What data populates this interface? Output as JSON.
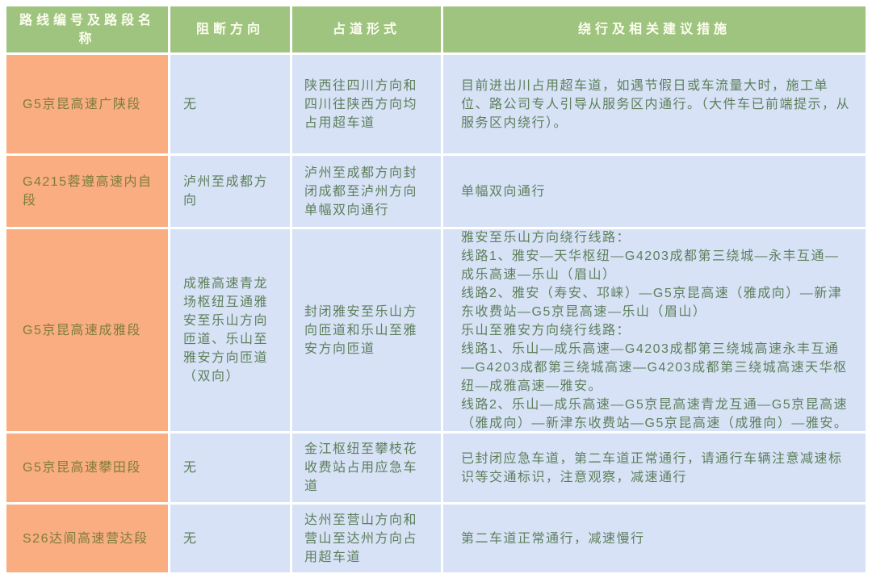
{
  "colors": {
    "header_bg": "#9fc47f",
    "header_text": "#fdfdf0",
    "route_column_bg": "#f9ad80",
    "route_column_text": "#7e7c3c",
    "body_cell_bg": "#d7e2f7",
    "body_cell_text": "#5e7f5a",
    "grid_gap": "#ffffff"
  },
  "table": {
    "headers": {
      "route": "路线编号及路段名称",
      "direction": "阻断方向",
      "occupation": "占道形式",
      "advice": "绕行及相关建议措施"
    },
    "rows": [
      {
        "route": "G5京昆高速广陕段",
        "direction": "无",
        "occupation": "陕西往四川方向和四川往陕西方向均占用超车道",
        "advice": "目前进出川占用超车道，如遇节假日或车流量大时，施工单位、路公司专人引导从服务区内通行。（大件车已前端提示，从服务区内绕行）。"
      },
      {
        "route": "G4215蓉遵高速内自段",
        "direction": "泸州至成都方向",
        "occupation": "泸州至成都方向封闭成都至泸州方向单幅双向通行",
        "advice": "单幅双向通行"
      },
      {
        "route": "G5京昆高速成雅段",
        "direction": "成雅高速青龙场枢纽互通雅安至乐山方向匝道、乐山至雅安方向匝道（双向）",
        "occupation": "封闭雅安至乐山方向匝道和乐山至雅安方向匝道",
        "advice": "雅安至乐山方向绕行线路：\n线路1、雅安—天华枢纽—G4203成都第三绕城—永丰互通—成乐高速—乐山（眉山）\n线路2、雅安（寿安、邛崃）—G5京昆高速（雅成向）—新津东收费站—G5京昆高速—乐山（眉山）\n乐山至雅安方向绕行线路：\n线路1、乐山—成乐高速—G4203成都第三绕城高速永丰互通—G4203成都第三绕城高速—G4203成都第三绕城高速天华枢纽—成雅高速—雅安。\n线路2、乐山—成乐高速—G5京昆高速青龙互通—G5京昆高速（雅成向）—新津东收费站—G5京昆高速（成雅向）—雅安。"
      },
      {
        "route": "G5京昆高速攀田段",
        "direction": "无",
        "occupation": "金江枢纽至攀枝花收费站占用应急车道",
        "advice": "已封闭应急车道，第二车道正常通行，请通行车辆注意减速标识等交通标识，注意观察，减速通行"
      },
      {
        "route": "S26达阆高速营达段",
        "direction": "无",
        "occupation": "达州至营山方向和营山至达州方向占用超车道",
        "advice": "第二车道正常通行，减速慢行"
      }
    ]
  }
}
